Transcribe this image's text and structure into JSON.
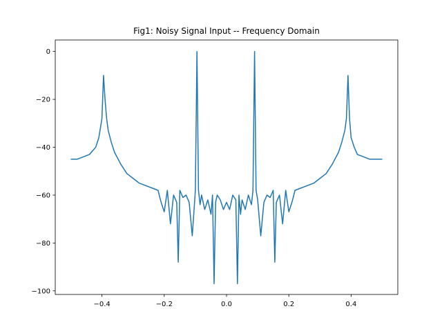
{
  "chart_data": {
    "type": "line",
    "title": "Fig1: Noisy Signal Input -- Frequency Domain",
    "xlabel": "",
    "ylabel": "",
    "xlim": [
      -0.55,
      0.55
    ],
    "ylim": [
      -101.5,
      4.8
    ],
    "xticks": [
      -0.4,
      -0.2,
      0.0,
      0.2,
      0.4
    ],
    "xtick_labels": [
      "−0.4",
      "−0.2",
      "0.0",
      "0.2",
      "0.4"
    ],
    "yticks": [
      0,
      -20,
      -40,
      -60,
      -80,
      -100
    ],
    "ytick_labels": [
      "0",
      "−20",
      "−40",
      "−60",
      "−80",
      "−100"
    ],
    "grid": false,
    "legend": "none",
    "line_color": "#1f77b4",
    "series": [
      {
        "x": [
          -0.5,
          -0.48,
          -0.46,
          -0.44,
          -0.42,
          -0.41,
          -0.4,
          -0.395,
          -0.39,
          -0.385,
          -0.38,
          -0.37,
          -0.36,
          -0.34,
          -0.32,
          -0.3,
          -0.28,
          -0.26,
          -0.24,
          -0.22,
          -0.21,
          -0.2,
          -0.19,
          -0.18,
          -0.17,
          -0.16,
          -0.155,
          -0.15,
          -0.14,
          -0.13,
          -0.12,
          -0.11,
          -0.1,
          -0.095,
          -0.09,
          -0.085,
          -0.08,
          -0.07,
          -0.06,
          -0.05,
          -0.045,
          -0.04,
          -0.035,
          -0.03,
          -0.02,
          -0.01,
          0.0,
          0.01,
          0.02,
          0.03,
          0.035,
          0.04,
          0.045,
          0.05,
          0.06,
          0.07,
          0.08,
          0.085,
          0.09,
          0.095,
          0.1,
          0.11,
          0.12,
          0.13,
          0.14,
          0.15,
          0.155,
          0.16,
          0.17,
          0.18,
          0.19,
          0.2,
          0.21,
          0.22,
          0.24,
          0.26,
          0.28,
          0.3,
          0.32,
          0.34,
          0.36,
          0.37,
          0.38,
          0.385,
          0.39,
          0.395,
          0.4,
          0.41,
          0.42,
          0.44,
          0.46,
          0.48,
          0.5
        ],
        "y": [
          -45,
          -45,
          -44,
          -43,
          -40,
          -36,
          -28,
          -10,
          -20,
          -28,
          -33,
          -38,
          -42,
          -47,
          -51,
          -53,
          -55,
          -56,
          -57,
          -58,
          -63,
          -67,
          -58,
          -72,
          -60,
          -63,
          -88,
          -58,
          -61,
          -60,
          -63,
          -77,
          -58,
          0,
          -58,
          -64,
          -60,
          -66,
          -62,
          -68,
          -60,
          -97,
          -63,
          -60,
          -62,
          -66,
          -63,
          -66,
          -60,
          -62,
          -97,
          -60,
          -68,
          -62,
          -66,
          -60,
          -64,
          -58,
          0,
          -58,
          -62,
          -77,
          -63,
          -60,
          -61,
          -58,
          -88,
          -63,
          -60,
          -72,
          -58,
          -67,
          -63,
          -58,
          -57,
          -56,
          -55,
          -53,
          -51,
          -47,
          -42,
          -38,
          -33,
          -28,
          -10,
          -28,
          -36,
          -40,
          -43,
          -44,
          -45,
          -45,
          -45
        ]
      }
    ]
  }
}
